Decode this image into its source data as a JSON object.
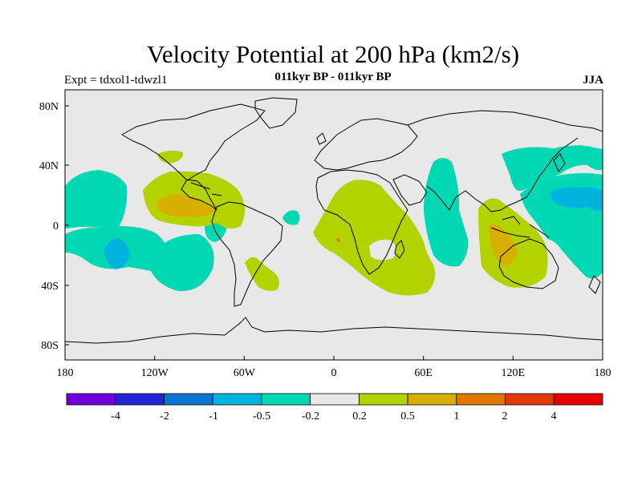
{
  "title": "Velocity Potential at 200 hPa (km2/s)",
  "subtitle": "011kyr BP - 011kyr BP",
  "left_label": "Expt = tdxol1-tdwzl1",
  "right_label": "JJA",
  "map": {
    "projection": "cylindrical-equidistant",
    "lon_range": [
      180,
      540
    ],
    "lat_range": [
      -90,
      90
    ],
    "x_ticks": [
      "180",
      "120W",
      "60W",
      "0",
      "60E",
      "120E",
      "180"
    ],
    "y_ticks": [
      "80N",
      "40N",
      "0",
      "40S",
      "80S"
    ]
  },
  "legend": {
    "colors": [
      "#6f00dc",
      "#2323d6",
      "#0a75d2",
      "#00b3dc",
      "#00d8b4",
      "#e8e8e8",
      "#b4d200",
      "#d8ae00",
      "#e07800",
      "#e03800",
      "#e80000"
    ],
    "labels": [
      "-4",
      "-2",
      "-1",
      "-0.5",
      "-0.2",
      "0.2",
      "0.5",
      "1",
      "2",
      "4"
    ]
  },
  "colors": {
    "background": "#e8e8e8",
    "teal": "#00d8b4",
    "cyan": "#00b3dc",
    "lime": "#b4d200",
    "gold": "#d8ae00",
    "orange": "#e07800"
  }
}
